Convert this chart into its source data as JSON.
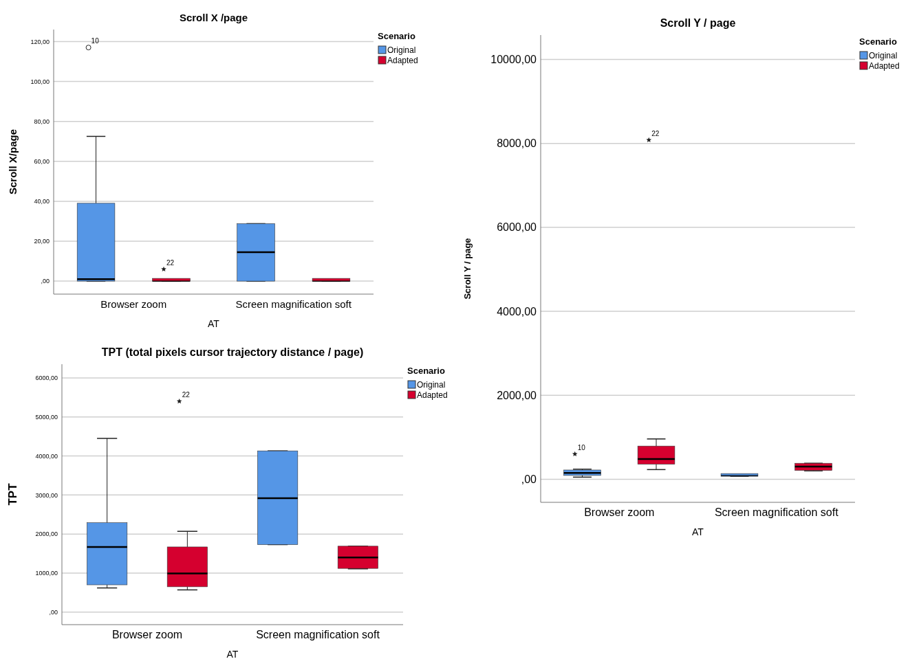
{
  "chart_data": [
    {
      "type": "box",
      "title": "Scroll X /page",
      "xlabel": "AT",
      "ylabel": "Scroll X/page",
      "legend_title": "Scenario",
      "legend": "top right",
      "grid": "y",
      "categories": [
        "Browser zoom",
        "Screen magnification soft"
      ],
      "ylim": [
        -6.5,
        126
      ],
      "yticks": [
        {
          "value": 0,
          "label": ",00"
        },
        {
          "value": 20,
          "label": "20,00"
        },
        {
          "value": 40,
          "label": "40,00"
        },
        {
          "value": 60,
          "label": "60,00"
        },
        {
          "value": 80,
          "label": "80,00"
        },
        {
          "value": 100,
          "label": "100,00"
        },
        {
          "value": 120,
          "label": "120,00"
        }
      ],
      "series": [
        {
          "name": "Original",
          "color": "#5596e6",
          "boxes": [
            {
              "low": 0,
              "q1": 0,
              "median": 1,
              "q3": 39,
              "high": 72.5,
              "outliers": [
                117
              ]
            },
            {
              "low": 0,
              "q1": 0,
              "median": 14.5,
              "q3": 28.8,
              "high": 28.8
            }
          ]
        },
        {
          "name": "Adapted",
          "color": "#d5002f",
          "boxes": [
            {
              "low": 0,
              "q1": 0,
              "median": 0,
              "q3": 0,
              "high": 0,
              "outliers": [
                6
              ]
            },
            {
              "low": 0,
              "q1": 0,
              "median": 0,
              "q3": 0,
              "high": 0
            }
          ]
        }
      ],
      "annotations": [
        "10",
        "22"
      ]
    },
    {
      "type": "box",
      "title": "Scroll Y / page",
      "xlabel": "AT",
      "ylabel": "Scroll Y / page",
      "legend_title": "Scenario",
      "legend": "top right",
      "grid": "y",
      "categories": [
        "Browser zoom",
        "Screen magnification soft"
      ],
      "ylim": [
        -550,
        10580
      ],
      "yticks": [
        {
          "value": 0,
          "label": ",00"
        },
        {
          "value": 2000,
          "label": "2000,00"
        },
        {
          "value": 4000,
          "label": "4000,00"
        },
        {
          "value": 6000,
          "label": "6000,00"
        },
        {
          "value": 8000,
          "label": "8000,00"
        },
        {
          "value": 10000,
          "label": "10000,00"
        }
      ],
      "series": [
        {
          "name": "Original",
          "color": "#5596e6",
          "boxes": [
            {
              "low": 50,
              "q1": 90,
              "median": 150,
              "q3": 220,
              "high": 240,
              "outliers": [
                600
              ]
            },
            {
              "low": 70,
              "q1": 70,
              "median": 85,
              "q3": 100,
              "high": 100
            }
          ]
        },
        {
          "name": "Adapted",
          "color": "#d5002f",
          "boxes": [
            {
              "low": 230,
              "q1": 360,
              "median": 480,
              "q3": 790,
              "high": 960,
              "outliers": [
                8080
              ]
            },
            {
              "low": 200,
              "q1": 210,
              "median": 300,
              "q3": 380,
              "high": 380
            }
          ]
        }
      ],
      "annotations": [
        "10",
        "22"
      ]
    },
    {
      "type": "box",
      "title": "TPT (total pixels cursor trajectory distance / page)",
      "xlabel": "AT",
      "ylabel": "TPT",
      "legend_title": "Scenario",
      "legend": "top right",
      "grid": "y",
      "categories": [
        "Browser zoom",
        "Screen magnification soft"
      ],
      "ylim": [
        -320,
        6350
      ],
      "yticks": [
        {
          "value": 0,
          "label": ",00"
        },
        {
          "value": 1000,
          "label": "1000,00"
        },
        {
          "value": 2000,
          "label": "2000,00"
        },
        {
          "value": 3000,
          "label": "3000,00"
        },
        {
          "value": 4000,
          "label": "4000,00"
        },
        {
          "value": 5000,
          "label": "5000,00"
        },
        {
          "value": 6000,
          "label": "6000,00"
        }
      ],
      "series": [
        {
          "name": "Original",
          "color": "#5596e6",
          "boxes": [
            {
              "low": 620,
              "q1": 700,
              "median": 1670,
              "q3": 2290,
              "high": 4450
            },
            {
              "low": 1730,
              "q1": 1730,
              "median": 2920,
              "q3": 4130,
              "high": 4130
            }
          ]
        },
        {
          "name": "Adapted",
          "color": "#d5002f",
          "boxes": [
            {
              "low": 570,
              "q1": 650,
              "median": 990,
              "q3": 1670,
              "high": 2070,
              "outliers": [
                5400
              ]
            },
            {
              "low": 1110,
              "q1": 1120,
              "median": 1400,
              "q3": 1690,
              "high": 1690
            }
          ]
        }
      ],
      "annotations": [
        "22"
      ]
    }
  ]
}
